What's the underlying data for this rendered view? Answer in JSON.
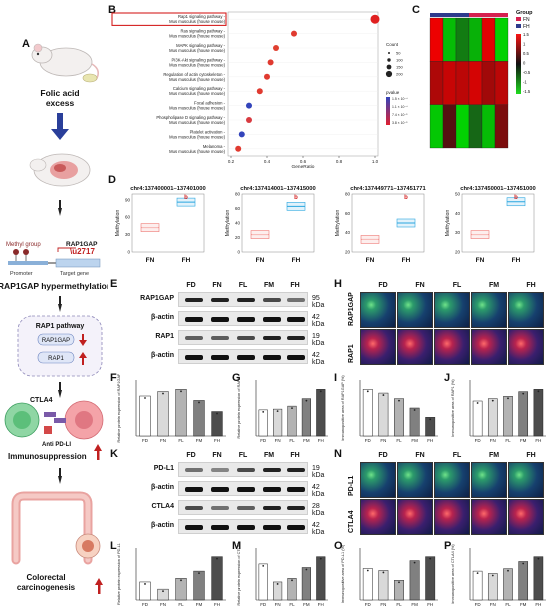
{
  "panels": {
    "A": "A",
    "B": "B",
    "C": "C",
    "D": "D",
    "E": "E",
    "F": "F",
    "G": "G",
    "H": "H",
    "I": "I",
    "J": "J",
    "K": "K",
    "L": "L",
    "M": "M",
    "N": "N",
    "O": "O",
    "P": "P"
  },
  "schematic": {
    "folic_acid": "Folic acid\nexcess",
    "methyl_group": "Methyl group",
    "rap1gap_gene": "RAP1GAP",
    "promoter": "Promoter",
    "target_gene": "Target gene",
    "hypermethylation": "RAP1GAP hypermethylation",
    "rap1_pathway": "RAP1 pathway",
    "rap1gap_box": "RAP1GAP",
    "rap1_box": "RAP1",
    "ctla4": "CTLA4",
    "anti_pdl1": "Anti PD-LI",
    "immunosuppression": "Immunosuppression",
    "colorectal": "Colorectal\ncarcinogenesis"
  },
  "enrichment": {
    "terms": [
      "Rap1 signaling pathway - Mus musculus (house mouse)",
      "Ras signaling pathway - Mus musculus (house mouse)",
      "MAPK signaling pathway - Mus musculus (house mouse)",
      "PI3K-Akt signaling pathway - Mus musculus (house mouse)",
      "Regulation of actin cytoskeleton - Mus musculus (house mouse)",
      "Calcium signaling pathway - Mus musculus (house mouse)",
      "Focal adhesion - Mus musculus (house mouse)",
      "Phospholipase D signaling pathway - Mus musculus (house mouse)",
      "Platelet activation - Mus musculus (house mouse)",
      "Melanoma - Mus musculus (house mouse)"
    ],
    "x_label": "GeneRatio",
    "x_ticks": [
      "0.2",
      "0.4",
      "0.6",
      "0.8",
      "1.0"
    ],
    "count_title": "Count",
    "count_values": [
      "50",
      "100",
      "150",
      "200"
    ],
    "pvalue_title": "pvalue",
    "pvalue_values": [
      "1.5 × 10⁻⁴",
      "1.1 × 10⁻⁴",
      "7.4 × 10⁻⁵",
      "3.8 × 10⁻⁵"
    ],
    "highlight_color": "#d42020"
  },
  "chart_data": [
    {
      "type": "scatter",
      "panel": "B",
      "categories": [
        "Rap1 signaling pathway - Mus musculus (house mouse)",
        "Ras signaling pathway - Mus musculus (house mouse)",
        "MAPK signaling pathway - Mus musculus (house mouse)",
        "PI3K-Akt signaling pathway - Mus musculus (house mouse)",
        "Regulation of actin cytoskeleton - Mus musculus (house mouse)",
        "Calcium signaling pathway - Mus musculus (house mouse)",
        "Focal adhesion - Mus musculus (house mouse)",
        "Phospholipase D signaling pathway - Mus musculus (house mouse)",
        "Platelet activation - Mus musculus (house mouse)",
        "Melanoma - Mus musculus (house mouse)"
      ],
      "values": [
        1.0,
        0.55,
        0.45,
        0.42,
        0.4,
        0.36,
        0.3,
        0.3,
        0.26,
        0.24
      ],
      "colors": [
        "#e02020",
        "#e03a30",
        "#e04030",
        "#e03a30",
        "#e03a30",
        "#e03a30",
        "#3344bb",
        "#d83a40",
        "#3344bb",
        "#e03a30"
      ],
      "xlabel": "GeneRatio",
      "xlim": [
        0.2,
        1.0
      ]
    },
    {
      "type": "heatmap",
      "panel": "C",
      "groups": [
        "FN",
        "FH"
      ],
      "group_title": "Group",
      "scale_ticks": [
        "1.5",
        "1",
        "0.5",
        "0",
        "-0.5",
        "-1",
        "-1.5"
      ],
      "values": [
        [
          1.4,
          -1.2,
          -0.6,
          -1.1,
          1.3,
          -1.4
        ],
        [
          0.9,
          1.1,
          1.0,
          1.2,
          0.8,
          1.0
        ],
        [
          -1.3,
          0.2,
          -1.4,
          -0.4,
          -1.2,
          0.5
        ]
      ]
    },
    {
      "type": "box",
      "panel": "D",
      "ylabel": "Methylation",
      "groups": [
        "FN",
        "FH"
      ],
      "plots": [
        {
          "title": "chr4:137400001–137401000",
          "ylim": [
            0,
            100
          ],
          "yticks": [
            "0",
            "30",
            "60",
            "90"
          ],
          "FN": 42,
          "FH": 86,
          "sig": "b"
        },
        {
          "title": "chr4:137414001–137415000",
          "ylim": [
            0,
            80
          ],
          "yticks": [
            "0",
            "20",
            "40",
            "60",
            "80"
          ],
          "FN": 24,
          "FH": 63,
          "sig": "b"
        },
        {
          "title": "chr4:137449771–137451771",
          "ylim": [
            20,
            80
          ],
          "yticks": [
            "20",
            "40",
            "60",
            "80"
          ],
          "FN": 33,
          "FH": 50,
          "sig": "b"
        },
        {
          "title": "chr4:137450001–137451000",
          "ylim": [
            20,
            50
          ],
          "yticks": [
            "20",
            "30",
            "40",
            "50"
          ],
          "FN": 29,
          "FH": 46,
          "sig": "b"
        }
      ]
    }
  ],
  "blots": {
    "lanes": [
      "FD",
      "FN",
      "FL",
      "FM",
      "FH"
    ],
    "E_rows": [
      {
        "label": "RAP1GAP",
        "size": "95 kDa"
      },
      {
        "label": "β-actin",
        "size": "42 kDa"
      },
      {
        "label": "RAP1",
        "size": "19 kDa"
      },
      {
        "label": "β-actin",
        "size": "42 kDa"
      }
    ],
    "K_rows": [
      {
        "label": "PD-L1",
        "size": "19 kDa"
      },
      {
        "label": "β-actin",
        "size": "42 kDa"
      },
      {
        "label": "CTLA4",
        "size": "28 kDa"
      },
      {
        "label": "β-actin",
        "size": "42 kDa"
      }
    ]
  },
  "if_panels": {
    "H_rows": [
      "RAP1GAP",
      "RAP1"
    ],
    "N_rows": [
      "PD-L1",
      "CTLA4"
    ]
  },
  "bars": {
    "categories": [
      "FD",
      "FN",
      "FL",
      "FM",
      "FH"
    ],
    "F": {
      "ylabel": "Relative protein expression of RAP1GAP",
      "values": [
        0.9,
        1.0,
        1.05,
        0.8,
        0.55
      ]
    },
    "G": {
      "ylabel": "Relative protein expression of RAP1",
      "values": [
        0.7,
        0.72,
        0.8,
        1.0,
        1.25
      ]
    },
    "I": {
      "ylabel": "Immunopositive area of RAP1GAP (%)",
      "values": [
        5,
        4.6,
        4.0,
        3.0,
        2.0
      ]
    },
    "J": {
      "ylabel": "Immunopositive area of RAP1 (%)",
      "values": [
        15,
        16,
        17,
        19,
        20
      ]
    },
    "L": {
      "ylabel": "Relative protein expression of PD-L1",
      "values": [
        0.5,
        0.3,
        0.6,
        0.8,
        1.2
      ]
    },
    "M": {
      "ylabel": "Relative protein expression of CTLA4",
      "values": [
        1.0,
        0.5,
        0.6,
        0.9,
        1.2
      ]
    },
    "O": {
      "ylabel": "Immunopositive area of PD-L1 (%)",
      "values": [
        8,
        7.5,
        5,
        10,
        11
      ]
    },
    "P": {
      "ylabel": "Immunopositive area of CTLA4 (%)",
      "values": [
        6,
        5.5,
        6.5,
        8,
        9
      ]
    }
  }
}
